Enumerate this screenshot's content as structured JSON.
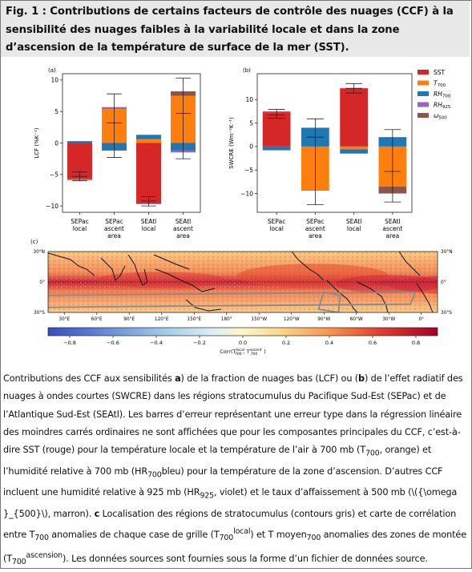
{
  "figure": {
    "title": "Fig. 1 : Contributions de certains facteurs de contrôle des nuages (CCF) à la sensibilité des nuages faibles à la variabilité locale et dans la zone d’ascension de la température de surface de la mer (SST).",
    "caption": {
      "p1": "Contributions des CCF aux sensibilités ",
      "a": "a",
      "p2": ") de la fraction de nuages bas (LCF) ou (",
      "b": "b",
      "p3": ") de l’effet radiatif des nuages à ondes courtes (SWCRE) dans les régions stratocumulus du Pacifique Sud-Est (SEPac) et de l’Atlantique Sud-Est (SEAtl). Les barres d’erreur représentant une erreur type dans la régression linéaire des moindres carrés ordinaires ne sont affichées que pour les composantes principales du CCF, c’est-à-dire SST (rouge) pour la température locale et la température de l’air à 700 mb (T",
      "sub1": "700",
      "p4": ", orange) et l’humidité relative à 700 mb (HR",
      "sub2": "700",
      "p5": "bleu) pour la température de la zone d’ascension. D’autres CCF incluent une humidité relative à 925 mb (HR",
      "sub3": "925",
      "p6": ", violet) et le taux d’affaissement à 500 mb (\\({\\omega }_{500}\\), marron). ",
      "c": "c",
      "p7": " Localisation des régions de stratocumulus (contours gris) et carte de corrélation entre T",
      "sub4": "700",
      "p8": " anomalies de chaque case de grille (T",
      "sub5": "700",
      "sup5": "local",
      "p9": ") et T moyen",
      "sub6": "700",
      "p10": " anomalies des zones de montée (T",
      "sub7": "700",
      "sup7": "ascension",
      "p11": "). Les données sources sont fournies sous la forme d’un fichier de données source."
    }
  },
  "chart_data": [
    {
      "type": "bar",
      "panel": "(a)",
      "ylabel": "LCF (%K⁻¹)",
      "ylim": [
        -11,
        11
      ],
      "yticks": [
        -10,
        -5,
        0,
        5,
        10
      ],
      "categories": [
        [
          "SEPac",
          "local"
        ],
        [
          "SEPac",
          "ascent",
          "area"
        ],
        [
          "SEAtl",
          "local"
        ],
        [
          "SEAtl",
          "ascent",
          "area"
        ]
      ],
      "stacked": true,
      "series": [
        {
          "name": "SST",
          "color": "#d62728",
          "values": [
            -5.7,
            0.0,
            -9.6,
            0.0
          ]
        },
        {
          "name": "T700",
          "color": "#ff7f0e",
          "values": [
            0.0,
            5.4,
            0.6,
            7.5
          ]
        },
        {
          "name": "RH700",
          "color": "#1f77b4",
          "values": [
            0.3,
            -1.2,
            0.7,
            -1.2
          ]
        },
        {
          "name": "RH925",
          "color": "#9467bd",
          "values": [
            -0.1,
            0.3,
            -0.1,
            -0.3
          ]
        },
        {
          "name": "ω500",
          "color": "#8c564b",
          "values": [
            -0.1,
            0.0,
            0.0,
            0.7
          ]
        }
      ],
      "error_bars": [
        {
          "category": 0,
          "center": -5.3,
          "low": -6.0,
          "high": -4.6
        },
        {
          "category": 1,
          "center": 3.2,
          "low": -2.3,
          "high": 7.8
        },
        {
          "category": 2,
          "center": -9.2,
          "low": -10.0,
          "high": -8.5
        },
        {
          "category": 3,
          "center": 4.7,
          "low": -2.5,
          "high": 10.3
        }
      ]
    },
    {
      "type": "bar",
      "panel": "(b)",
      "ylabel": "SWCRE (Wm⁻²K⁻¹)",
      "ylim": [
        -14,
        15.5
      ],
      "yticks": [
        -10,
        -5,
        0,
        5,
        10
      ],
      "categories": [
        [
          "SEPac",
          "local"
        ],
        [
          "SEPac",
          "ascent",
          "area"
        ],
        [
          "SEAtl",
          "local"
        ],
        [
          "SEAtl",
          "ascent",
          "area"
        ]
      ],
      "stacked": true,
      "series": [
        {
          "name": "SST",
          "color": "#d62728",
          "values": [
            7.3,
            0.0,
            12.4,
            0.0
          ]
        },
        {
          "name": "T700",
          "color": "#ff7f0e",
          "values": [
            0.0,
            -9.3,
            -0.6,
            -8.5
          ]
        },
        {
          "name": "RH700",
          "color": "#1f77b4",
          "values": [
            -0.8,
            4.0,
            -0.9,
            2.0
          ]
        },
        {
          "name": "RH925",
          "color": "#9467bd",
          "values": [
            0.2,
            -0.1,
            0.0,
            0.0
          ]
        },
        {
          "name": "ω500",
          "color": "#8c564b",
          "values": [
            0.0,
            0.0,
            0.0,
            -1.5
          ]
        }
      ],
      "error_bars": [
        {
          "category": 0,
          "center": 6.7,
          "low": 6.0,
          "high": 7.9
        },
        {
          "category": 1,
          "center": 2.0,
          "low": -12.4,
          "high": 5.9
        },
        {
          "category": 2,
          "center": 12.4,
          "low": 11.4,
          "high": 13.4
        },
        {
          "category": 3,
          "center": -5.3,
          "low": -11.8,
          "high": 3.6
        }
      ],
      "legend": {
        "placement": "right",
        "entries": [
          {
            "label": "SST",
            "base": "SST",
            "sub": "",
            "color": "#d62728"
          },
          {
            "label": "T700",
            "base": "T",
            "sub": "700",
            "color": "#ff7f0e"
          },
          {
            "label": "RH700",
            "base": "RH",
            "sub": "700",
            "color": "#1f77b4"
          },
          {
            "label": "RH925",
            "base": "RH",
            "sub": "925",
            "color": "#9467bd"
          },
          {
            "label": "ω500",
            "base": "ω",
            "sub": "500",
            "color": "#8c564b"
          }
        ]
      }
    },
    {
      "type": "heatmap",
      "panel": "(c)",
      "xticks": [
        "30°E",
        "60°E",
        "90°E",
        "120°E",
        "150°E",
        "180°",
        "150°W",
        "120°W",
        "90°W",
        "60°W",
        "30°W",
        "0°"
      ],
      "yticks_left": [
        "30°N",
        "0°",
        "30°S"
      ],
      "yticks_right": [
        "30°N",
        "0°",
        "30°S"
      ],
      "lon_range": [
        15,
        375
      ],
      "lat_range": [
        -30,
        30
      ],
      "colorbar": {
        "range": [
          -0.9,
          0.9
        ],
        "ticks": [
          "−0.8",
          "−0.6",
          "−0.4",
          "−0.2",
          "0.0",
          "0.2",
          "0.4",
          "0.6",
          "0.8"
        ],
        "label_base": "Corr(T",
        "label_sub1": "700",
        "label_sup1": "local",
        "label_mid": ", T",
        "label_sub2": "700",
        "label_sup2": "ascent",
        "label_end": ")"
      },
      "stratocumulus_regions": [
        {
          "name": "SEPac",
          "lon": [
            -95,
            -75
          ],
          "lat": [
            -30,
            -10
          ]
        },
        {
          "name": "SEAtl",
          "lon": [
            -10,
            10
          ],
          "lat": [
            -25,
            -10
          ]
        }
      ]
    }
  ]
}
